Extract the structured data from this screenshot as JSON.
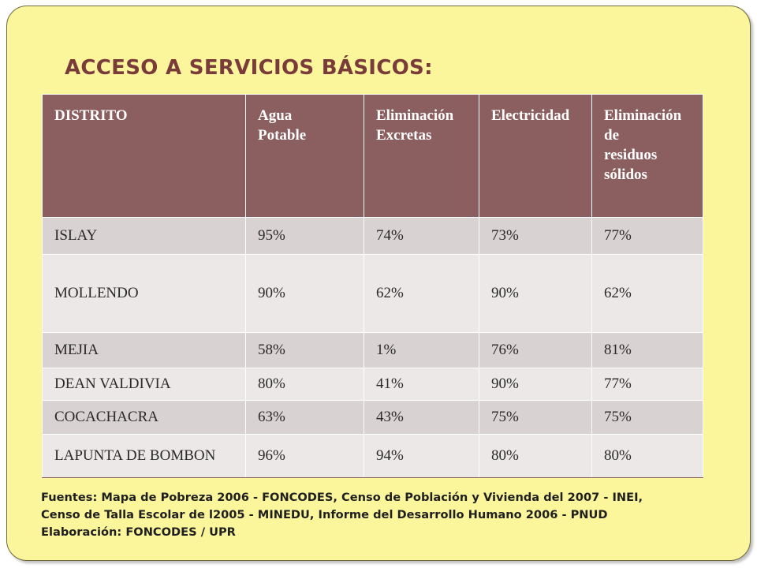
{
  "title": "ACCESO A SERVICIOS BÁSICOS:",
  "table": {
    "headers": [
      "DISTRITO",
      "Agua\nPotable",
      "Eliminación\nExcretas",
      "Electricidad",
      "Eliminación\nde\nresiduos\nsólidos"
    ],
    "rows": [
      [
        "ISLAY",
        "95%",
        "74%",
        "73%",
        "77%"
      ],
      [
        "MOLLENDO",
        "90%",
        "62%",
        "90%",
        "62%"
      ],
      [
        "MEJIA",
        "58%",
        "1%",
        "76%",
        "81%"
      ],
      [
        "DEAN VALDIVIA",
        "80%",
        "41%",
        "90%",
        "77%"
      ],
      [
        "COCACHACRA",
        "63%",
        "43%",
        "75%",
        "75%"
      ],
      [
        "LAPUNTA DE BOMBON",
        "96%",
        "94%",
        "80%",
        "80%"
      ]
    ]
  },
  "sources": [
    "Fuentes: Mapa de Pobreza 2006 - FONCODES, Censo de Población y Vivienda del 2007 - INEI,",
    "Censo de Talla Escolar de l2005 - MINEDU, Informe del Desarrollo Humano 2006 - PNUD",
    "Elaboración:  FONCODES / UPR"
  ],
  "colors": {
    "slide_background": "#fbf59b",
    "title": "#7a3b3b",
    "header_background": "#8b5f5f",
    "row_odd": "#d9d2d2",
    "row_even": "#ece8e8"
  }
}
